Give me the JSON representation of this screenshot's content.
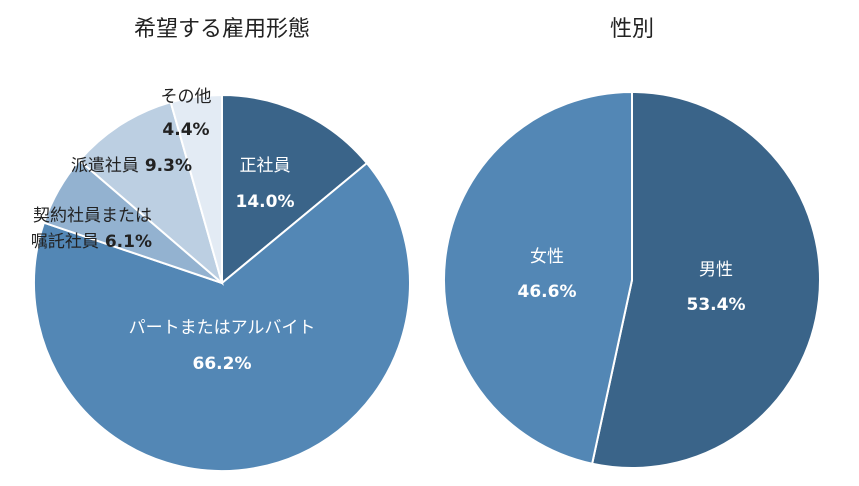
{
  "chart_data": [
    {
      "type": "pie",
      "title": "希望する雇用形態",
      "slices": [
        {
          "label": "正社員",
          "value": 14.0,
          "value_label": "14.0%",
          "color": "#3a6489",
          "text_color": "#ffffff"
        },
        {
          "label": "パートまたはアルバイト",
          "value": 66.2,
          "value_label": "66.2%",
          "color": "#5387b5",
          "text_color": "#ffffff"
        },
        {
          "label_lines": [
            "契約社員または",
            "嘱託社員"
          ],
          "value": 6.1,
          "value_label": "6.1%",
          "color": "#93b2d0",
          "text_color": "#222222"
        },
        {
          "label": "派遣社員",
          "value": 9.3,
          "value_label": "9.3%",
          "color": "#bccfe2",
          "text_color": "#222222"
        },
        {
          "label": "その他",
          "value": 4.4,
          "value_label": "4.4%",
          "color": "#e3ebf4",
          "text_color": "#222222"
        }
      ]
    },
    {
      "type": "pie",
      "title": "性別",
      "slices": [
        {
          "label": "男性",
          "value": 53.4,
          "value_label": "53.4%",
          "color": "#3a6489",
          "text_color": "#ffffff"
        },
        {
          "label": "女性",
          "value": 46.6,
          "value_label": "46.6%",
          "color": "#5387b5",
          "text_color": "#ffffff"
        }
      ]
    }
  ]
}
